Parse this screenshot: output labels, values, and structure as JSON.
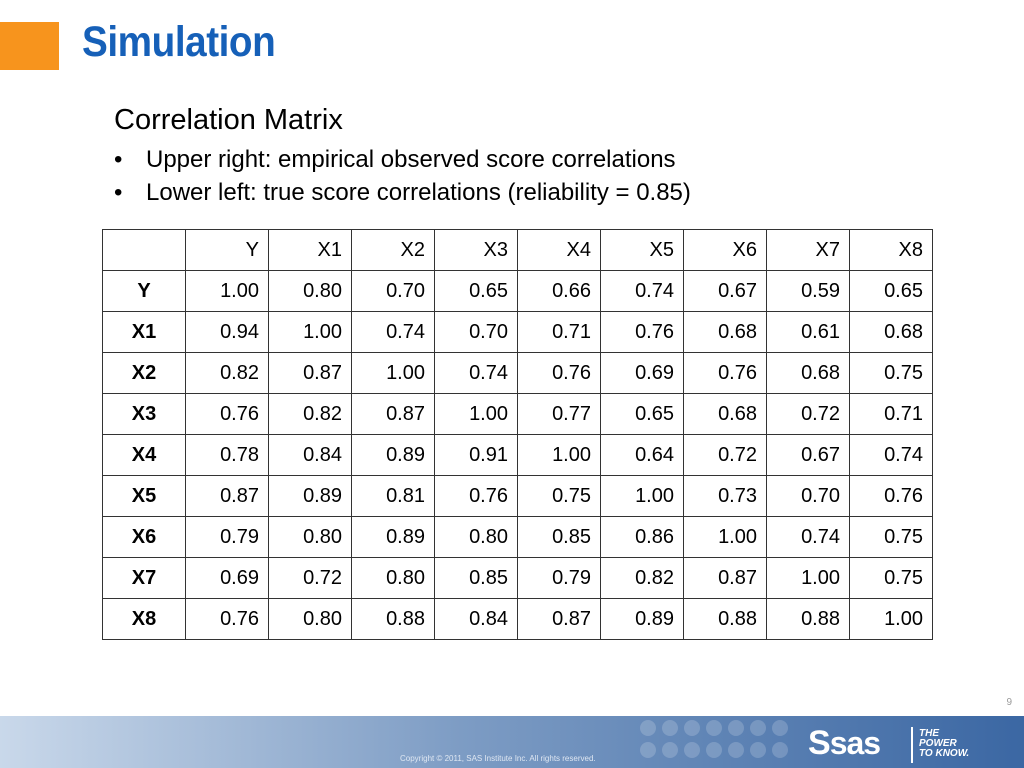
{
  "slide": {
    "title": "Simulation",
    "subtitle": "Correlation Matrix",
    "bullets": [
      "Upper right: empirical observed score correlations",
      "Lower left: true score correlations (reliability = 0.85)"
    ]
  },
  "table": {
    "header": [
      "",
      "Y",
      "X1",
      "X2",
      "X3",
      "X4",
      "X5",
      "X6",
      "X7",
      "X8"
    ],
    "rows": [
      {
        "label": "Y",
        "values": [
          "1.00",
          "0.80",
          "0.70",
          "0.65",
          "0.66",
          "0.74",
          "0.67",
          "0.59",
          "0.65"
        ]
      },
      {
        "label": "X1",
        "values": [
          "0.94",
          "1.00",
          "0.74",
          "0.70",
          "0.71",
          "0.76",
          "0.68",
          "0.61",
          "0.68"
        ]
      },
      {
        "label": "X2",
        "values": [
          "0.82",
          "0.87",
          "1.00",
          "0.74",
          "0.76",
          "0.69",
          "0.76",
          "0.68",
          "0.75"
        ]
      },
      {
        "label": "X3",
        "values": [
          "0.76",
          "0.82",
          "0.87",
          "1.00",
          "0.77",
          "0.65",
          "0.68",
          "0.72",
          "0.71"
        ]
      },
      {
        "label": "X4",
        "values": [
          "0.78",
          "0.84",
          "0.89",
          "0.91",
          "1.00",
          "0.64",
          "0.72",
          "0.67",
          "0.74"
        ]
      },
      {
        "label": "X5",
        "values": [
          "0.87",
          "0.89",
          "0.81",
          "0.76",
          "0.75",
          "1.00",
          "0.73",
          "0.70",
          "0.76"
        ]
      },
      {
        "label": "X6",
        "values": [
          "0.79",
          "0.80",
          "0.89",
          "0.80",
          "0.85",
          "0.86",
          "1.00",
          "0.74",
          "0.75"
        ]
      },
      {
        "label": "X7",
        "values": [
          "0.69",
          "0.72",
          "0.80",
          "0.85",
          "0.79",
          "0.82",
          "0.87",
          "1.00",
          "0.75"
        ]
      },
      {
        "label": "X8",
        "values": [
          "0.76",
          "0.80",
          "0.88",
          "0.84",
          "0.87",
          "0.89",
          "0.88",
          "0.88",
          "1.00"
        ]
      }
    ]
  },
  "footer": {
    "page_number": "9",
    "copyright": "Copyright © 2011, SAS Institute Inc. All rights reserved.",
    "logo_text": "sas",
    "logo_s": "S",
    "tagline": [
      "THE",
      "POWER",
      "TO KNOW."
    ]
  },
  "colors": {
    "accent": "#f7941d",
    "title": "#1660b8",
    "footer": "#3b67a3"
  }
}
